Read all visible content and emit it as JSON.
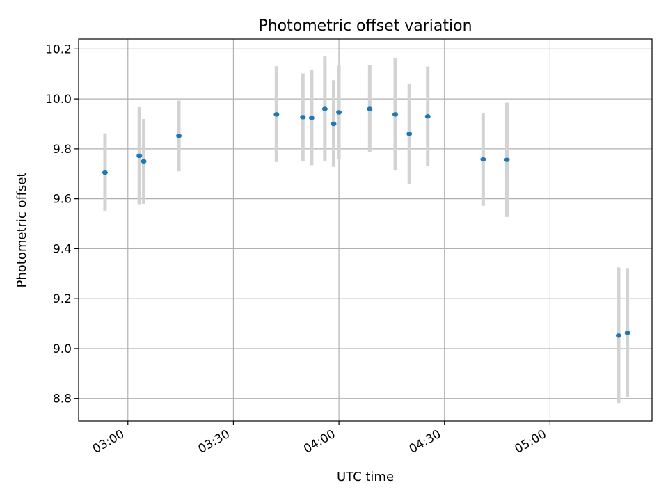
{
  "chart_data": {
    "type": "scatter",
    "title": "Photometric offset variation",
    "xlabel": "UTC time",
    "ylabel": "Photometric offset",
    "xlim": [
      "02:46",
      "05:29"
    ],
    "ylim": [
      8.71,
      10.24
    ],
    "x_ticks": [
      "03:00",
      "03:30",
      "04:00",
      "04:30",
      "05:00"
    ],
    "y_ticks": [
      8.8,
      9.0,
      9.2,
      9.4,
      9.6,
      9.8,
      10.0,
      10.2
    ],
    "grid": true,
    "legend": "none",
    "series": [
      {
        "marker_color": "#1f77b4",
        "errorbar_color": "#d3d3d3",
        "points": [
          {
            "x": "02:53:30",
            "y": 9.705,
            "low": 9.552,
            "high": 9.862
          },
          {
            "x": "03:03:15",
            "y": 9.772,
            "low": 9.578,
            "high": 9.967
          },
          {
            "x": "03:04:30",
            "y": 9.75,
            "low": 9.58,
            "high": 9.92
          },
          {
            "x": "03:14:30",
            "y": 9.852,
            "low": 9.71,
            "high": 9.993
          },
          {
            "x": "03:42:15",
            "y": 9.938,
            "low": 9.747,
            "high": 10.131
          },
          {
            "x": "03:49:45",
            "y": 9.927,
            "low": 9.752,
            "high": 10.102
          },
          {
            "x": "03:52:15",
            "y": 9.924,
            "low": 9.735,
            "high": 10.117
          },
          {
            "x": "03:56:00",
            "y": 9.96,
            "low": 9.752,
            "high": 10.17
          },
          {
            "x": "03:58:30",
            "y": 9.9,
            "low": 9.728,
            "high": 10.075
          },
          {
            "x": "04:00:00",
            "y": 9.946,
            "low": 9.76,
            "high": 10.133
          },
          {
            "x": "04:08:45",
            "y": 9.96,
            "low": 9.788,
            "high": 10.135
          },
          {
            "x": "04:16:00",
            "y": 9.938,
            "low": 9.713,
            "high": 10.164
          },
          {
            "x": "04:20:00",
            "y": 9.86,
            "low": 9.658,
            "high": 10.06
          },
          {
            "x": "04:25:15",
            "y": 9.93,
            "low": 9.73,
            "high": 10.13
          },
          {
            "x": "04:41:00",
            "y": 9.758,
            "low": 9.572,
            "high": 9.942
          },
          {
            "x": "04:47:45",
            "y": 9.756,
            "low": 9.527,
            "high": 9.985
          },
          {
            "x": "05:19:30",
            "y": 9.052,
            "low": 8.782,
            "high": 9.325
          },
          {
            "x": "05:22:00",
            "y": 9.063,
            "low": 8.805,
            "high": 9.322
          }
        ]
      }
    ]
  }
}
